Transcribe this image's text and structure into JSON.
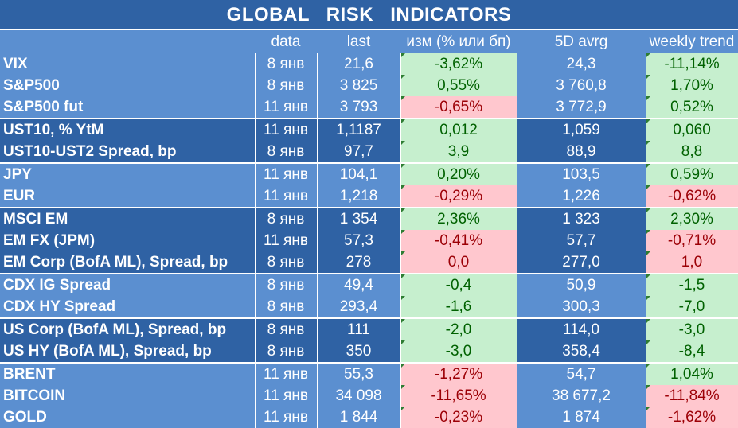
{
  "title": "GLOBAL   RISK   INDICATORS",
  "headers": {
    "name": "",
    "date": "data",
    "last": "last",
    "change": "изм (% или бп)",
    "avg": "5D avrg",
    "trend": "weekly trend"
  },
  "groups": [
    {
      "rows": [
        {
          "name": "VIX",
          "date": "8 янв",
          "last": "21,6",
          "change": "-3,62%",
          "avg": "24,3",
          "trend": "-11,14%",
          "change_sign": "pos",
          "trend_sign": "pos"
        },
        {
          "name": "S&P500",
          "date": "8 янв",
          "last": "3 825",
          "change": "0,55%",
          "avg": "3 760,8",
          "trend": "1,70%",
          "change_sign": "pos",
          "trend_sign": "pos"
        },
        {
          "name": "S&P500 fut",
          "date": "11 янв",
          "last": "3 793",
          "change": "-0,65%",
          "avg": "3 772,9",
          "trend": "0,52%",
          "change_sign": "neg",
          "trend_sign": "pos"
        }
      ]
    },
    {
      "rows": [
        {
          "name": "UST10, % YtM",
          "date": "11 янв",
          "last": "1,1187",
          "change": "0,012",
          "avg": "1,059",
          "trend": "0,060",
          "change_sign": "pos",
          "trend_sign": "pos"
        },
        {
          "name": "UST10-UST2 Spread, bp",
          "date": "8 янв",
          "last": "97,7",
          "change": "3,9",
          "avg": "88,9",
          "trend": "8,8",
          "change_sign": "pos",
          "trend_sign": "pos"
        }
      ]
    },
    {
      "rows": [
        {
          "name": "JPY",
          "date": "11 янв",
          "last": "104,1",
          "change": "0,20%",
          "avg": "103,5",
          "trend": "0,59%",
          "change_sign": "pos",
          "trend_sign": "pos"
        },
        {
          "name": "EUR",
          "date": "11 янв",
          "last": "1,218",
          "change": "-0,29%",
          "avg": "1,226",
          "trend": "-0,62%",
          "change_sign": "neg",
          "trend_sign": "neg"
        }
      ]
    },
    {
      "rows": [
        {
          "name": "MSCI EM",
          "date": "8 янв",
          "last": "1 354",
          "change": "2,36%",
          "avg": "1 323",
          "trend": "2,30%",
          "change_sign": "pos",
          "trend_sign": "pos"
        },
        {
          "name": "EM FX (JPM)",
          "date": "11 янв",
          "last": "57,3",
          "change": "-0,41%",
          "avg": "57,7",
          "trend": "-0,71%",
          "change_sign": "neg",
          "trend_sign": "neg"
        },
        {
          "name": "EM Corp (BofA ML), Spread, bp",
          "date": "8 янв",
          "last": "278",
          "change": "0,0",
          "avg": "277,0",
          "trend": "1,0",
          "change_sign": "neg",
          "trend_sign": "neg"
        }
      ]
    },
    {
      "rows": [
        {
          "name": "CDX IG Spread",
          "date": "8 янв",
          "last": "49,4",
          "change": "-0,4",
          "avg": "50,9",
          "trend": "-1,5",
          "change_sign": "pos",
          "trend_sign": "pos"
        },
        {
          "name": "CDX HY Spread",
          "date": "8 янв",
          "last": "293,4",
          "change": "-1,6",
          "avg": "300,3",
          "trend": "-7,0",
          "change_sign": "pos",
          "trend_sign": "pos"
        }
      ]
    },
    {
      "rows": [
        {
          "name": "US Corp (BofA ML), Spread, bp",
          "date": "8 янв",
          "last": "111",
          "change": "-2,0",
          "avg": "114,0",
          "trend": "-3,0",
          "change_sign": "pos",
          "trend_sign": "pos"
        },
        {
          "name": "US HY (BofA ML), Spread, bp",
          "date": "8 янв",
          "last": "350",
          "change": "-3,0",
          "avg": "358,4",
          "trend": "-8,4",
          "change_sign": "pos",
          "trend_sign": "pos"
        }
      ]
    },
    {
      "rows": [
        {
          "name": "BRENT",
          "date": "11 янв",
          "last": "55,3",
          "change": "-1,27%",
          "avg": "54,7",
          "trend": "1,04%",
          "change_sign": "neg",
          "trend_sign": "pos"
        },
        {
          "name": "BITCOIN",
          "date": "11 янв",
          "last": "34 098",
          "change": "-11,65%",
          "avg": "38 677,2",
          "trend": "-11,84%",
          "change_sign": "neg",
          "trend_sign": "neg"
        },
        {
          "name": "GOLD",
          "date": "11 янв",
          "last": "1 844",
          "change": "-0,23%",
          "avg": "1 874",
          "trend": "-1,62%",
          "change_sign": "neg",
          "trend_sign": "neg"
        }
      ]
    }
  ],
  "colors": {
    "header_dark": "#2f62a4",
    "header_light": "#5b8fd0",
    "positive_bg": "#c6efce",
    "positive_text": "#006100",
    "negative_bg": "#ffc7ce",
    "negative_text": "#9c0006"
  }
}
